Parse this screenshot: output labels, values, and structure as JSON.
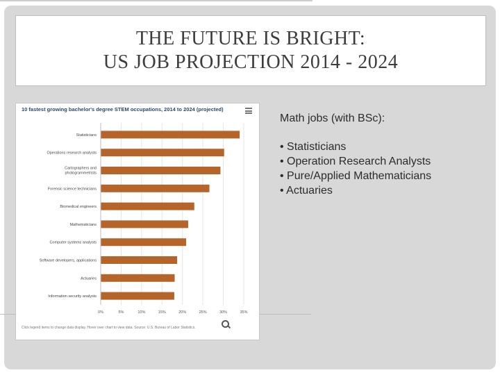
{
  "slide": {
    "title_line1": "THE FUTURE IS BRIGHT:",
    "title_line2": "US JOB PROJECTION 2014 - 2024"
  },
  "side": {
    "heading": "Math jobs (with BSc):",
    "items": [
      "• Statisticians",
      "• Operation Research Analysts",
      "• Pure/Applied Mathematicians",
      "• Actuaries"
    ]
  },
  "chart_note": "Click legend items to change data display. Hover over chart to view data. Source: U.S. Bureau of Labor Statistics.",
  "icons": {
    "menu": "menu-icon",
    "zoom": "zoom-icon"
  },
  "chart_data": {
    "type": "bar",
    "orientation": "horizontal",
    "title": "10 fastest growing bachelor's degree STEM occupations, 2014 to 2024 (projected)",
    "categories": [
      "Statisticians",
      "Operations research analysts",
      "Cartographers and photogrammetrists",
      "Forensic science technicians",
      "Biomedical engineers",
      "Mathematicians",
      "Computer systems analysts",
      "Software developers, applications",
      "Actuaries",
      "Information security analysts"
    ],
    "values": [
      34,
      30.2,
      29.3,
      26.6,
      22.9,
      21.4,
      20.9,
      18.7,
      18.1,
      18.0
    ],
    "xticks": [
      "0%",
      "5%",
      "10%",
      "15%",
      "20%",
      "25%",
      "30%",
      "35%"
    ],
    "xlim": [
      0,
      35
    ],
    "bar_color": "#b5652a",
    "grid": true
  }
}
